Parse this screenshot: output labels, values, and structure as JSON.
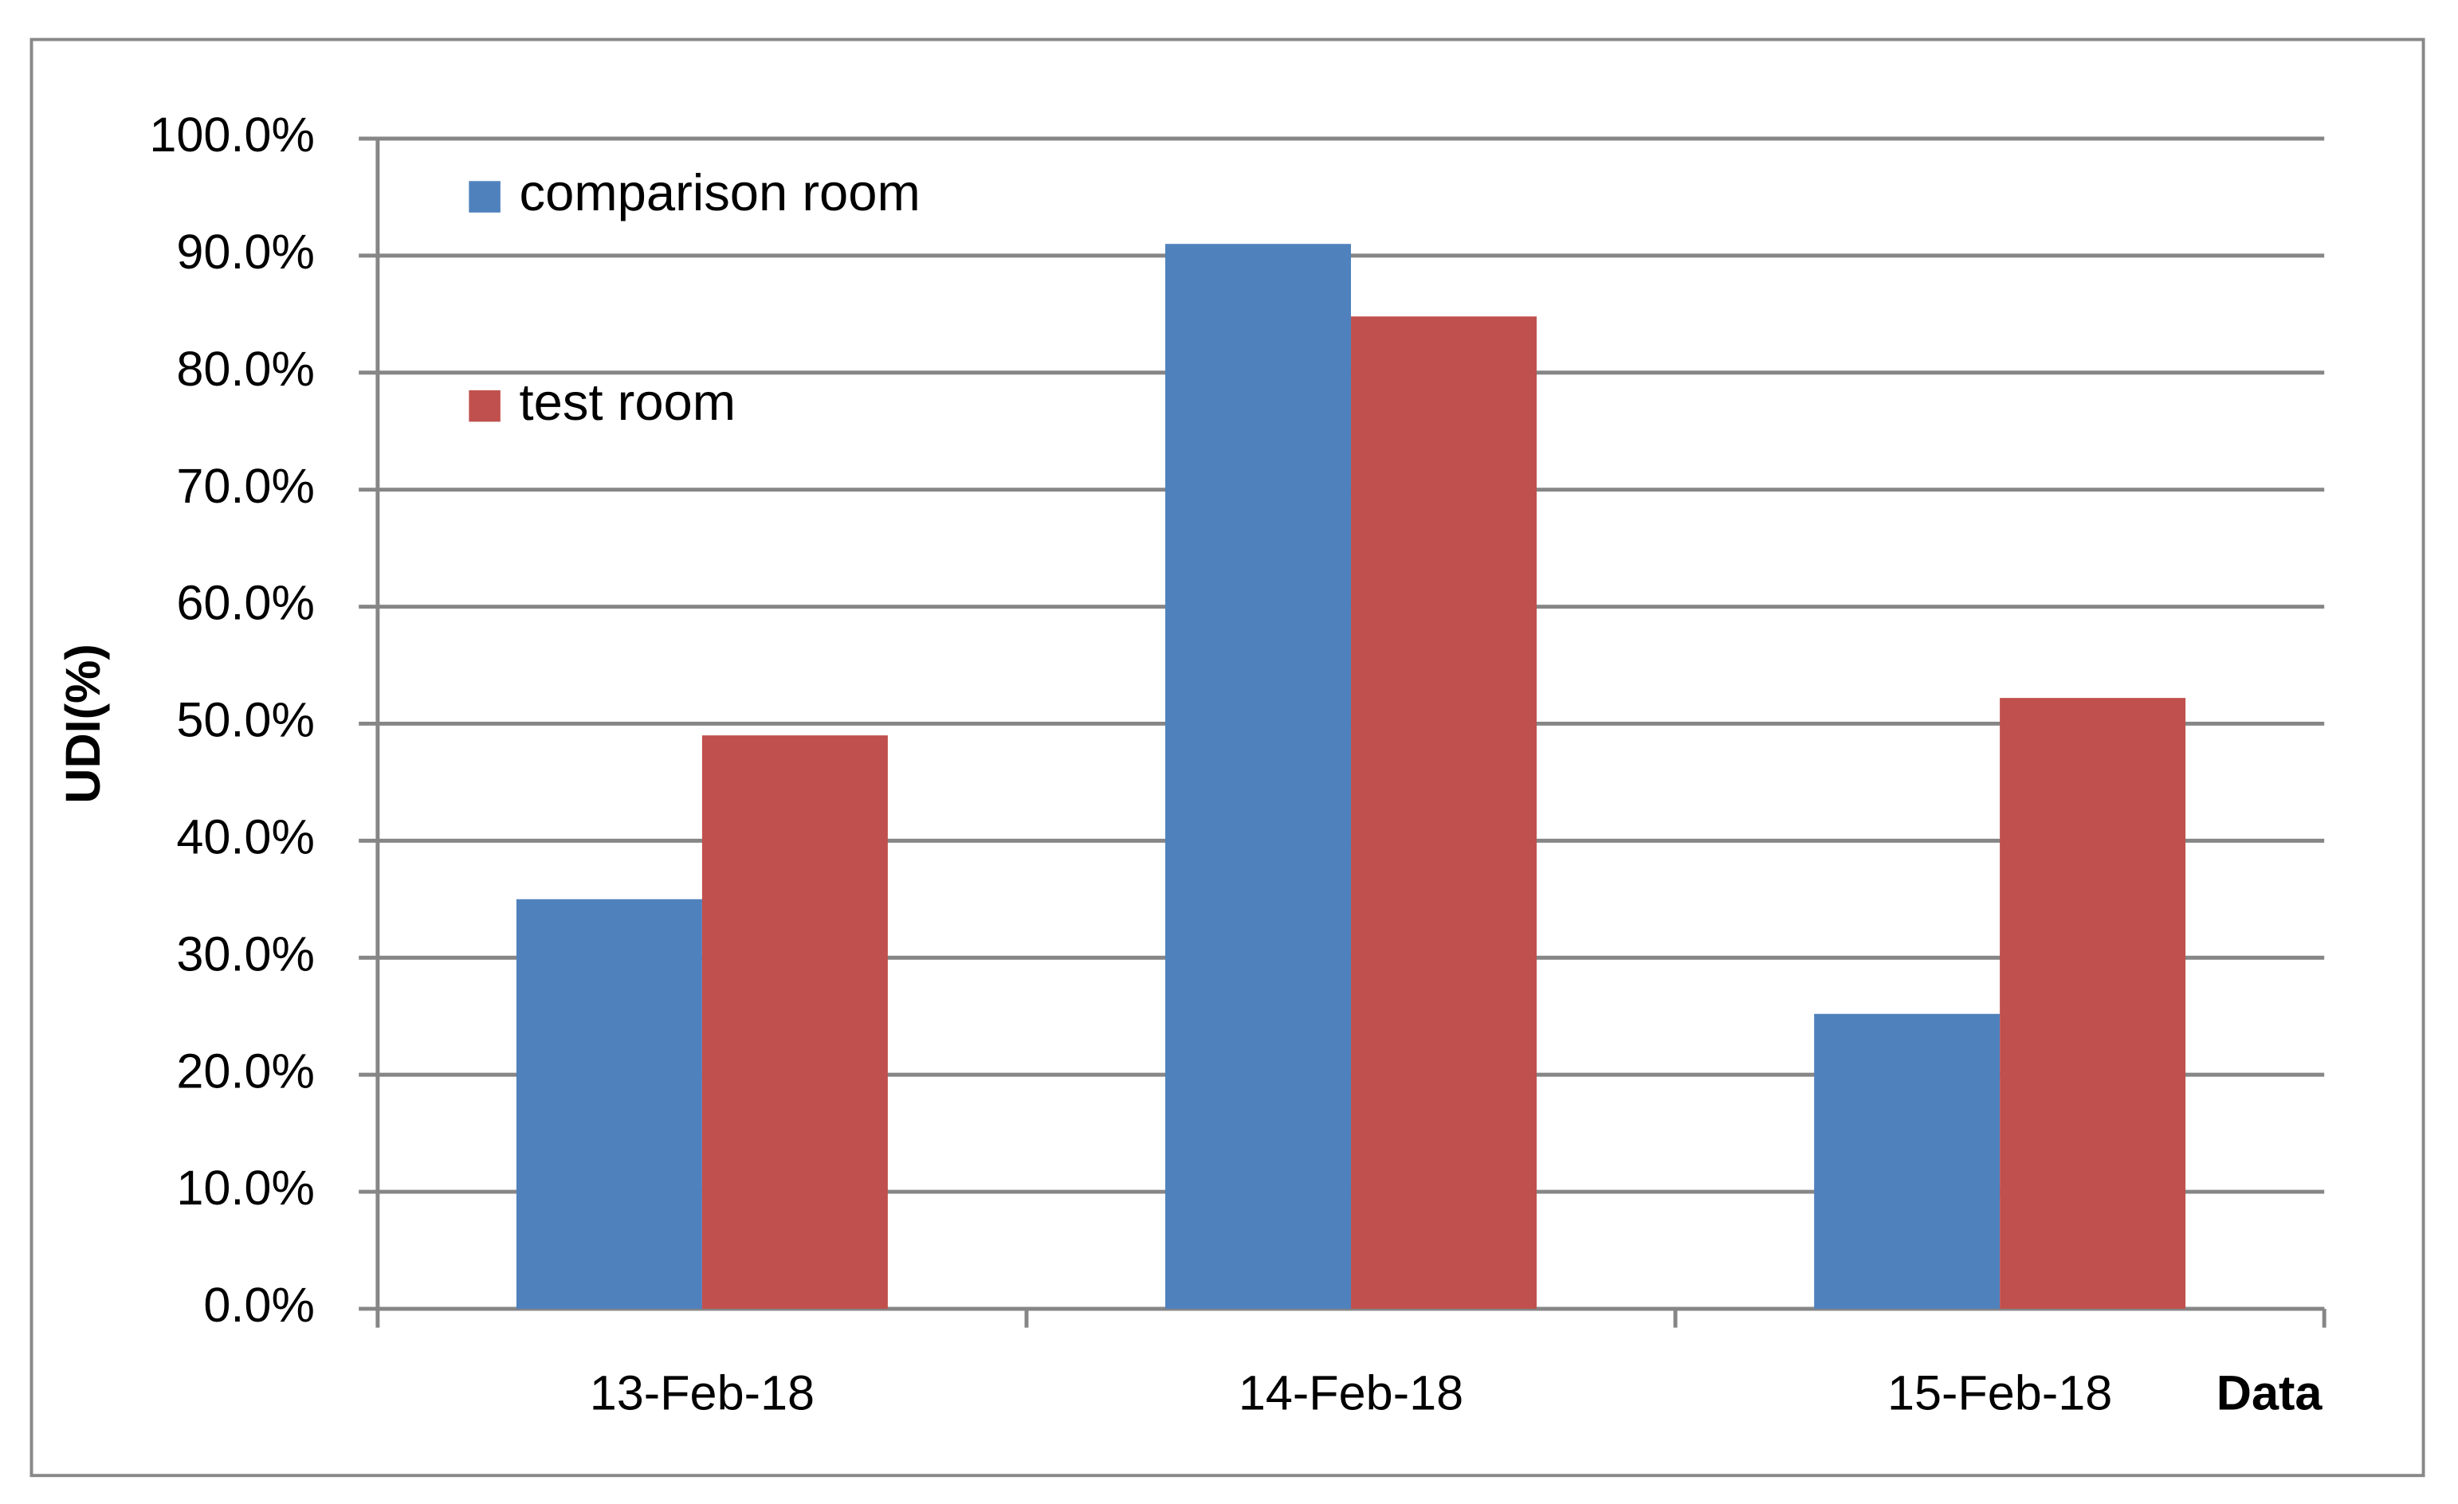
{
  "chart_data": {
    "type": "bar",
    "x_label": "Data",
    "y_label": "UDI(%)",
    "categories": [
      "13-Feb-18",
      "14-Feb-18",
      "15-Feb-18"
    ],
    "series": [
      {
        "name": "comparison room",
        "color": "#4f81bd",
        "values": [
          35.0,
          91.0,
          25.2
        ]
      },
      {
        "name": "test room",
        "color": "#c0504d",
        "values": [
          49.0,
          84.8,
          52.2
        ]
      }
    ],
    "ylim": [
      0,
      100
    ],
    "yticks": [
      {
        "value": 0,
        "label": "0.0%"
      },
      {
        "value": 10,
        "label": "10.0%"
      },
      {
        "value": 20,
        "label": "20.0%"
      },
      {
        "value": 30,
        "label": "30.0%"
      },
      {
        "value": 40,
        "label": "40.0%"
      },
      {
        "value": 50,
        "label": "50.0%"
      },
      {
        "value": 60,
        "label": "60.0%"
      },
      {
        "value": 70,
        "label": "70.0%"
      },
      {
        "value": 80,
        "label": "80.0%"
      },
      {
        "value": 90,
        "label": "90.0%"
      },
      {
        "value": 100,
        "label": "100.0%"
      }
    ],
    "grid": true
  }
}
